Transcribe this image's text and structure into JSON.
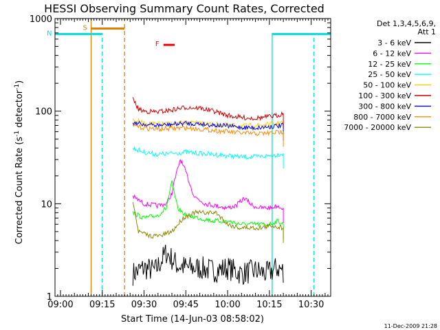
{
  "chart_data": {
    "type": "line",
    "title": "HESSI Observing Summary Count Rates, Corrected",
    "xlabel": "Start Time (14-Jun-03 08:58:02)",
    "ylabel": "Corrected Count Rate (s⁻¹ detector⁻¹)",
    "ylim": [
      1,
      1000
    ],
    "y_scale": "log",
    "x_range": [
      "08:58:02",
      "10:37:00"
    ],
    "x_ticks": [
      "09:00",
      "09:15",
      "09:30",
      "09:45",
      "10:00",
      "10:15",
      "10:30"
    ],
    "y_ticks": [
      "1",
      "10",
      "100",
      "1000"
    ],
    "footer": "11-Dec-2009 21:28",
    "legend": {
      "header": [
        "Det 1,3,4,5,6,9,",
        "Att 1"
      ],
      "placement": "right"
    },
    "series": [
      {
        "name": "3 - 6 keV",
        "color": "#000000",
        "x": [
          "09:26",
          "09:30",
          "09:34",
          "09:38",
          "09:42",
          "09:46",
          "09:50",
          "09:55",
          "10:00",
          "10:05",
          "10:10",
          "10:14",
          "10:18",
          "10:20"
        ],
        "values": [
          1.3,
          1.5,
          1.4,
          2.2,
          1.6,
          1.5,
          1.5,
          1.4,
          1.5,
          1.3,
          1.4,
          1.3,
          1.5,
          1.4
        ]
      },
      {
        "name": "6 - 12 keV",
        "color": "#ff00ff",
        "x": [
          "09:26",
          "09:30",
          "09:35",
          "09:38",
          "09:40",
          "09:41",
          "09:43",
          "09:45",
          "09:48",
          "09:52",
          "09:56",
          "10:00",
          "10:03",
          "10:06",
          "10:09",
          "10:12",
          "10:15",
          "10:18",
          "10:20"
        ],
        "values": [
          12,
          10,
          9.5,
          10,
          13,
          18,
          30,
          22,
          12,
          10,
          9.5,
          9,
          9.5,
          11.5,
          9.5,
          9,
          9,
          9.5,
          9
        ]
      },
      {
        "name": "12 - 25 keV",
        "color": "#00ff00",
        "x": [
          "09:26",
          "09:30",
          "09:35",
          "09:38",
          "09:40",
          "09:42",
          "09:45",
          "09:50",
          "09:55",
          "10:00",
          "10:05",
          "10:10",
          "10:15",
          "10:18",
          "10:20"
        ],
        "values": [
          8,
          7,
          7.5,
          9,
          17,
          9,
          7.5,
          7,
          6.5,
          6.5,
          6,
          6,
          6,
          6.5,
          6
        ]
      },
      {
        "name": "25 - 50 keV",
        "color": "#00ffff",
        "x": [
          "09:26",
          "09:30",
          "09:35",
          "09:40",
          "09:45",
          "09:50",
          "09:55",
          "10:00",
          "10:05",
          "10:10",
          "10:15",
          "10:18",
          "10:20"
        ],
        "values": [
          40,
          36,
          34,
          35,
          36,
          35,
          34,
          33,
          32,
          32,
          33,
          34,
          35
        ]
      },
      {
        "name": "50 - 100 keV",
        "color": "#ffcc00",
        "x": [
          "09:26",
          "09:30",
          "09:35",
          "09:40",
          "09:45",
          "09:50",
          "09:55",
          "10:00",
          "10:05",
          "10:10",
          "10:15",
          "10:18",
          "10:20"
        ],
        "values": [
          80,
          74,
          72,
          73,
          75,
          74,
          72,
          70,
          69,
          70,
          72,
          74,
          76
        ]
      },
      {
        "name": "100 - 300 keV",
        "color": "#cc0000",
        "x": [
          "09:26",
          "09:28",
          "09:30",
          "09:35",
          "09:40",
          "09:45",
          "09:50",
          "09:55",
          "10:00",
          "10:05",
          "10:10",
          "10:15",
          "10:18",
          "10:20"
        ],
        "values": [
          135,
          105,
          100,
          98,
          103,
          110,
          108,
          100,
          90,
          85,
          84,
          87,
          90,
          95
        ]
      },
      {
        "name": "300 - 800 keV",
        "color": "#0000ff",
        "x": [
          "09:26",
          "09:30",
          "09:35",
          "09:40",
          "09:45",
          "09:50",
          "09:55",
          "10:00",
          "10:05",
          "10:10",
          "10:15",
          "10:20"
        ],
        "values": [
          75,
          72,
          70,
          72,
          74,
          73,
          71,
          69,
          67,
          66,
          68,
          70
        ]
      },
      {
        "name": "800 - 7000 keV",
        "color": "#ff8800",
        "x": [
          "09:26",
          "09:30",
          "09:35",
          "09:40",
          "09:45",
          "09:50",
          "09:55",
          "10:00",
          "10:05",
          "10:10",
          "10:15",
          "10:20"
        ],
        "values": [
          70,
          66,
          64,
          65,
          66,
          64,
          62,
          60,
          58,
          57,
          58,
          60
        ]
      },
      {
        "name": "7000 - 20000 keV",
        "color": "#888800",
        "x": [
          "09:26",
          "09:28",
          "09:32",
          "09:36",
          "09:40",
          "09:44",
          "09:48",
          "09:52",
          "09:56",
          "10:00",
          "10:04",
          "10:08",
          "10:12",
          "10:16",
          "10:20"
        ],
        "values": [
          11,
          5,
          4.5,
          4.5,
          5,
          7,
          8,
          8,
          8,
          6,
          5.5,
          5.5,
          5.5,
          5.8,
          5.5
        ]
      }
    ],
    "vertical_lines": [
      {
        "time": "09:11",
        "color": "#e08000",
        "style": "solid",
        "ymax": 1000
      },
      {
        "time": "09:15",
        "color": "#00e0e0",
        "style": "dashed",
        "ymax": 700
      },
      {
        "time": "09:23",
        "color": "#e08000",
        "style": "dashed",
        "ymax": 1000
      },
      {
        "time": "10:16",
        "color": "#00e0e0",
        "style": "solid",
        "ymax": 700
      },
      {
        "time": "10:31",
        "color": "#00e0e0",
        "style": "dashed",
        "ymax": 700
      }
    ],
    "intervals": [
      {
        "label": "S",
        "color": "#e08000",
        "start": "09:11",
        "end": "09:23",
        "level": 780
      },
      {
        "label": "N",
        "color": "#00e0e0",
        "start": "08:58",
        "end": "09:15",
        "level": 680
      },
      {
        "label": "",
        "color": "#00e0e0",
        "start": "10:16",
        "end": "10:37",
        "level": 680
      },
      {
        "label": "F",
        "color": "#ff0000",
        "start": "09:37",
        "end": "09:41",
        "level": 520
      }
    ]
  }
}
